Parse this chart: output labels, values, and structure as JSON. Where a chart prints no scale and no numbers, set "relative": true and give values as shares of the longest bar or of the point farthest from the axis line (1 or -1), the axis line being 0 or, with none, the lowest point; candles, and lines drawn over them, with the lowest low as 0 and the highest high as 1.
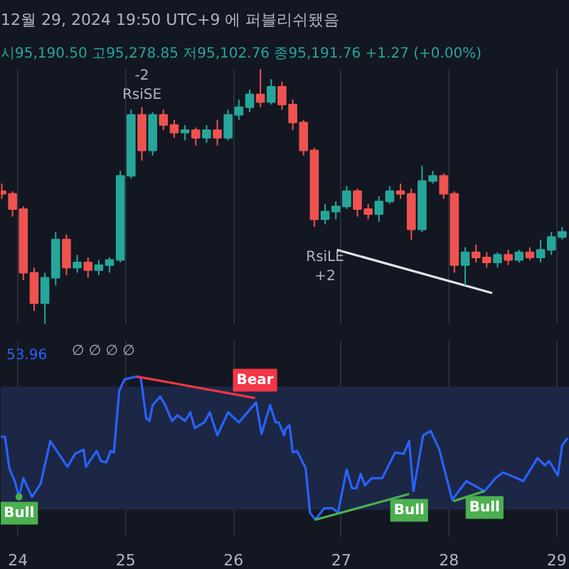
{
  "chart_data": [
    {
      "type": "candlestick",
      "title": "12월 29, 2024 19:50 UTC+9 에 퍼블리쉬됐음",
      "subtitle": "시95,190.50 고95,278.85 저95,102.76 종95,191.76 +1.27 (+0.00%)",
      "relative": true,
      "xticks": [
        24,
        25,
        26,
        27,
        28,
        29
      ],
      "tick_labels": false,
      "grid": "x",
      "x": [
        23.85,
        23.95,
        24.05,
        24.15,
        24.25,
        24.35,
        24.45,
        24.55,
        24.65,
        24.75,
        24.85,
        24.95,
        25.05,
        25.15,
        25.25,
        25.35,
        25.45,
        25.55,
        25.65,
        25.75,
        25.85,
        25.95,
        26.05,
        26.15,
        26.25,
        26.35,
        26.45,
        26.55,
        26.65,
        26.75,
        26.85,
        26.95,
        27.05,
        27.15,
        27.25,
        27.35,
        27.45,
        27.55,
        27.65,
        27.75,
        27.85,
        27.95,
        28.05,
        28.15,
        28.25,
        28.35,
        28.45,
        28.55,
        28.65,
        28.75,
        28.85,
        28.95,
        29.05
      ],
      "ohlc": [
        [
          0.52,
          0.55,
          0.49,
          0.51
        ],
        [
          0.51,
          0.52,
          0.42,
          0.45
        ],
        [
          0.45,
          0.46,
          0.17,
          0.2
        ],
        [
          0.2,
          0.22,
          0.05,
          0.08
        ],
        [
          0.08,
          0.2,
          0,
          0.18
        ],
        [
          0.18,
          0.36,
          0.15,
          0.33
        ],
        [
          0.33,
          0.35,
          0.19,
          0.22
        ],
        [
          0.22,
          0.27,
          0.2,
          0.24
        ],
        [
          0.24,
          0.26,
          0.18,
          0.21
        ],
        [
          0.21,
          0.25,
          0.19,
          0.23
        ],
        [
          0.23,
          0.26,
          0.2,
          0.25
        ],
        [
          0.25,
          0.6,
          0.24,
          0.58
        ],
        [
          0.58,
          0.84,
          0.57,
          0.82
        ],
        [
          0.82,
          0.85,
          0.64,
          0.68
        ],
        [
          0.68,
          0.83,
          0.66,
          0.82
        ],
        [
          0.82,
          0.84,
          0.76,
          0.78
        ],
        [
          0.78,
          0.8,
          0.73,
          0.75
        ],
        [
          0.75,
          0.78,
          0.72,
          0.76
        ],
        [
          0.76,
          0.77,
          0.7,
          0.73
        ],
        [
          0.73,
          0.78,
          0.71,
          0.76
        ],
        [
          0.76,
          0.8,
          0.7,
          0.73
        ],
        [
          0.73,
          0.84,
          0.72,
          0.82
        ],
        [
          0.82,
          0.88,
          0.8,
          0.85
        ],
        [
          0.85,
          0.92,
          0.83,
          0.9
        ],
        [
          0.9,
          1.0,
          0.85,
          0.87
        ],
        [
          0.87,
          0.96,
          0.86,
          0.93
        ],
        [
          0.93,
          0.95,
          0.84,
          0.86
        ],
        [
          0.86,
          0.88,
          0.76,
          0.79
        ],
        [
          0.79,
          0.8,
          0.66,
          0.68
        ],
        [
          0.68,
          0.69,
          0.38,
          0.41
        ],
        [
          0.41,
          0.47,
          0.39,
          0.44
        ],
        [
          0.44,
          0.48,
          0.41,
          0.46
        ],
        [
          0.46,
          0.54,
          0.45,
          0.52
        ],
        [
          0.52,
          0.53,
          0.42,
          0.45
        ],
        [
          0.45,
          0.47,
          0.41,
          0.43
        ],
        [
          0.43,
          0.5,
          0.4,
          0.48
        ],
        [
          0.48,
          0.54,
          0.47,
          0.52
        ],
        [
          0.52,
          0.55,
          0.49,
          0.51
        ],
        [
          0.51,
          0.53,
          0.33,
          0.37
        ],
        [
          0.37,
          0.62,
          0.36,
          0.56
        ],
        [
          0.56,
          0.6,
          0.55,
          0.58
        ],
        [
          0.58,
          0.59,
          0.49,
          0.51
        ],
        [
          0.51,
          0.52,
          0.2,
          0.23
        ],
        [
          0.23,
          0.3,
          0.15,
          0.28
        ],
        [
          0.28,
          0.31,
          0.24,
          0.26
        ],
        [
          0.26,
          0.28,
          0.22,
          0.24
        ],
        [
          0.24,
          0.28,
          0.22,
          0.27
        ],
        [
          0.27,
          0.29,
          0.23,
          0.25
        ],
        [
          0.25,
          0.29,
          0.24,
          0.28
        ],
        [
          0.28,
          0.3,
          0.25,
          0.26
        ],
        [
          0.26,
          0.33,
          0.24,
          0.29
        ],
        [
          0.29,
          0.36,
          0.27,
          0.34
        ],
        [
          0.34,
          0.38,
          0.33,
          0.36
        ]
      ],
      "colors": [
        "#ef5350",
        "#ef5350",
        "#ef5350",
        "#ef5350",
        "#26a69a",
        "#26a69a",
        "#ef5350",
        "#26a69a",
        "#ef5350",
        "#26a69a",
        "#26a69a",
        "#26a69a",
        "#26a69a",
        "#ef5350",
        "#26a69a",
        "#ef5350",
        "#ef5350",
        "#26a69a",
        "#ef5350",
        "#26a69a",
        "#ef5350",
        "#26a69a",
        "#26a69a",
        "#26a69a",
        "#ef5350",
        "#26a69a",
        "#ef5350",
        "#ef5350",
        "#ef5350",
        "#ef5350",
        "#26a69a",
        "#26a69a",
        "#26a69a",
        "#ef5350",
        "#ef5350",
        "#26a69a",
        "#26a69a",
        "#ef5350",
        "#ef5350",
        "#26a69a",
        "#26a69a",
        "#ef5350",
        "#ef5350",
        "#26a69a",
        "#ef5350",
        "#ef5350",
        "#26a69a",
        "#ef5350",
        "#26a69a",
        "#ef5350",
        "#26a69a",
        "#26a69a",
        "#26a69a"
      ],
      "series": [
        {
          "type": "line",
          "color": "#e0e3eb",
          "x": [
            26.96,
            28.4
          ],
          "values": [
            0.29,
            0.12
          ]
        }
      ],
      "annotations": [
        {
          "text": "-2\nRsiSE",
          "x": 25.15,
          "y": 0.85
        },
        {
          "text": "RsiLE\n+2",
          "x": 26.85,
          "y": 0.39
        }
      ]
    },
    {
      "type": "line",
      "relative": true,
      "xlim": [
        23.84,
        29.12
      ],
      "xticks": [
        24,
        25,
        26,
        27,
        28,
        29
      ],
      "tick_labels": "x",
      "grid": "x",
      "line_style": "solid",
      "bands": [
        {
          "axis": "y",
          "from": 0.07,
          "to": 0.93,
          "color": "#1c2746"
        }
      ],
      "annotations": [
        "53.96",
        "∅ ∅ ∅ ∅"
      ],
      "series": [
        {
          "color": "#2962ff",
          "x": [
            23.84,
            23.88,
            23.92,
            23.97,
            24.01,
            24.05,
            24.13,
            24.21,
            24.3,
            24.46,
            24.53,
            24.61,
            24.63,
            24.73,
            24.77,
            24.82,
            24.86,
            24.89,
            24.94,
            24.99,
            25.1,
            25.14,
            25.19,
            25.22,
            25.25,
            25.32,
            25.36,
            25.43,
            25.48,
            25.55,
            25.6,
            25.64,
            25.73,
            25.78,
            25.85,
            25.95,
            26.05,
            26.13,
            26.21,
            26.26,
            26.34,
            26.39,
            26.42,
            26.47,
            26.48,
            26.52,
            26.55,
            26.59,
            26.67,
            26.71,
            26.76,
            26.84,
            26.92,
            26.97,
            27.05,
            27.1,
            27.14,
            27.18,
            27.22,
            27.28,
            27.38,
            27.5,
            27.58,
            27.63,
            27.67,
            27.76,
            27.83,
            27.91,
            28.03,
            28.16,
            28.33,
            28.43,
            28.5,
            28.57,
            28.69,
            28.82,
            28.89,
            28.93,
            29.01,
            29.05,
            29.1
          ],
          "values": [
            0.58,
            0.58,
            0.36,
            0.27,
            0.16,
            0.29,
            0.16,
            0.25,
            0.55,
            0.37,
            0.46,
            0.49,
            0.37,
            0.48,
            0.41,
            0.4,
            0.48,
            0.47,
            0.9,
            0.98,
            1.0,
            0.99,
            0.71,
            0.69,
            0.8,
            0.86,
            0.81,
            0.69,
            0.73,
            0.69,
            0.75,
            0.64,
            0.68,
            0.75,
            0.59,
            0.75,
            0.68,
            0.75,
            0.82,
            0.6,
            0.8,
            0.68,
            0.68,
            0.59,
            0.63,
            0.66,
            0.47,
            0.48,
            0.36,
            0.05,
            0,
            0.08,
            0.08,
            0.05,
            0.35,
            0.22,
            0.22,
            0.32,
            0.24,
            0.29,
            0.29,
            0.47,
            0.46,
            0.55,
            0.2,
            0.59,
            0.62,
            0.49,
            0.14,
            0.27,
            0.2,
            0.29,
            0.33,
            0.31,
            0.27,
            0.43,
            0.38,
            0.41,
            0.31,
            0.52,
            0.57
          ]
        },
        {
          "name": "Bear",
          "color": "#f23645",
          "x": [
            25.1,
            26.2
          ],
          "values": [
            1.0,
            0.85
          ]
        },
        {
          "name": "Bull",
          "color": "#4caf50",
          "x": [
            26.76,
            27.63
          ],
          "values": [
            0,
            0.18
          ]
        },
        {
          "name": "Bull",
          "color": "#4caf50",
          "x": [
            28.04,
            28.33
          ],
          "values": [
            0.13,
            0.2
          ]
        },
        {
          "name": "Bull",
          "color": "#4caf50",
          "marker": "circle",
          "x": [
            24.01
          ],
          "values": [
            0.16
          ]
        }
      ]
    }
  ]
}
